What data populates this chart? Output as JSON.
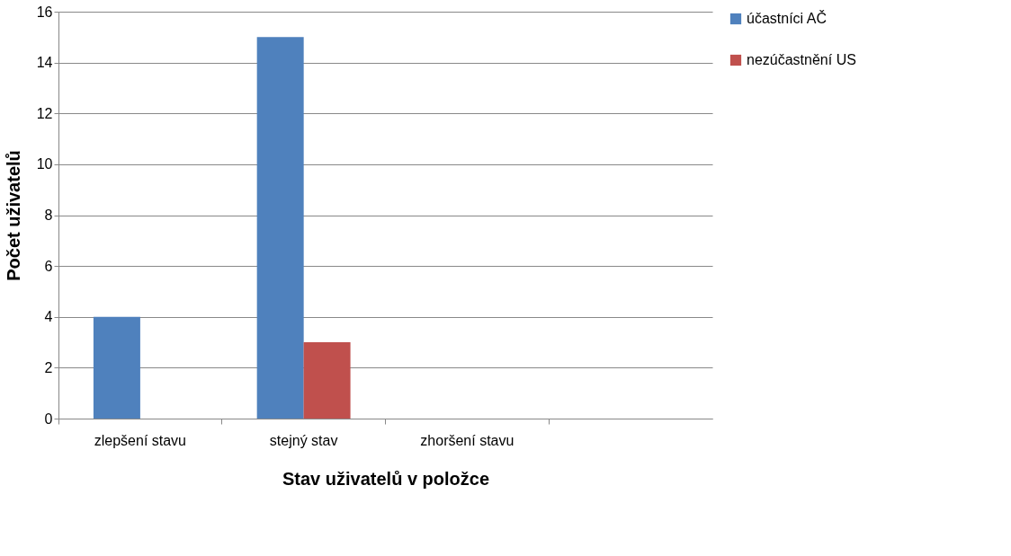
{
  "chart_data": {
    "type": "bar",
    "xlabel": "Stav uživatelů v položce",
    "ylabel": "Počet uživatelů",
    "categories": [
      "zlepšení stavu",
      "stejný stav",
      "zhoršení stavu",
      null
    ],
    "series": [
      {
        "name": "účastníci AČ",
        "color": "#4f81bd",
        "values": [
          4,
          15,
          0,
          null
        ]
      },
      {
        "name": "nezúčastnění US",
        "color": "#c0504d",
        "values": [
          0,
          3,
          0,
          null
        ]
      }
    ],
    "ylim": [
      0,
      16
    ],
    "yticks": [
      0,
      2,
      4,
      6,
      8,
      10,
      12,
      14,
      16
    ],
    "grid": "y",
    "legend": "right"
  }
}
